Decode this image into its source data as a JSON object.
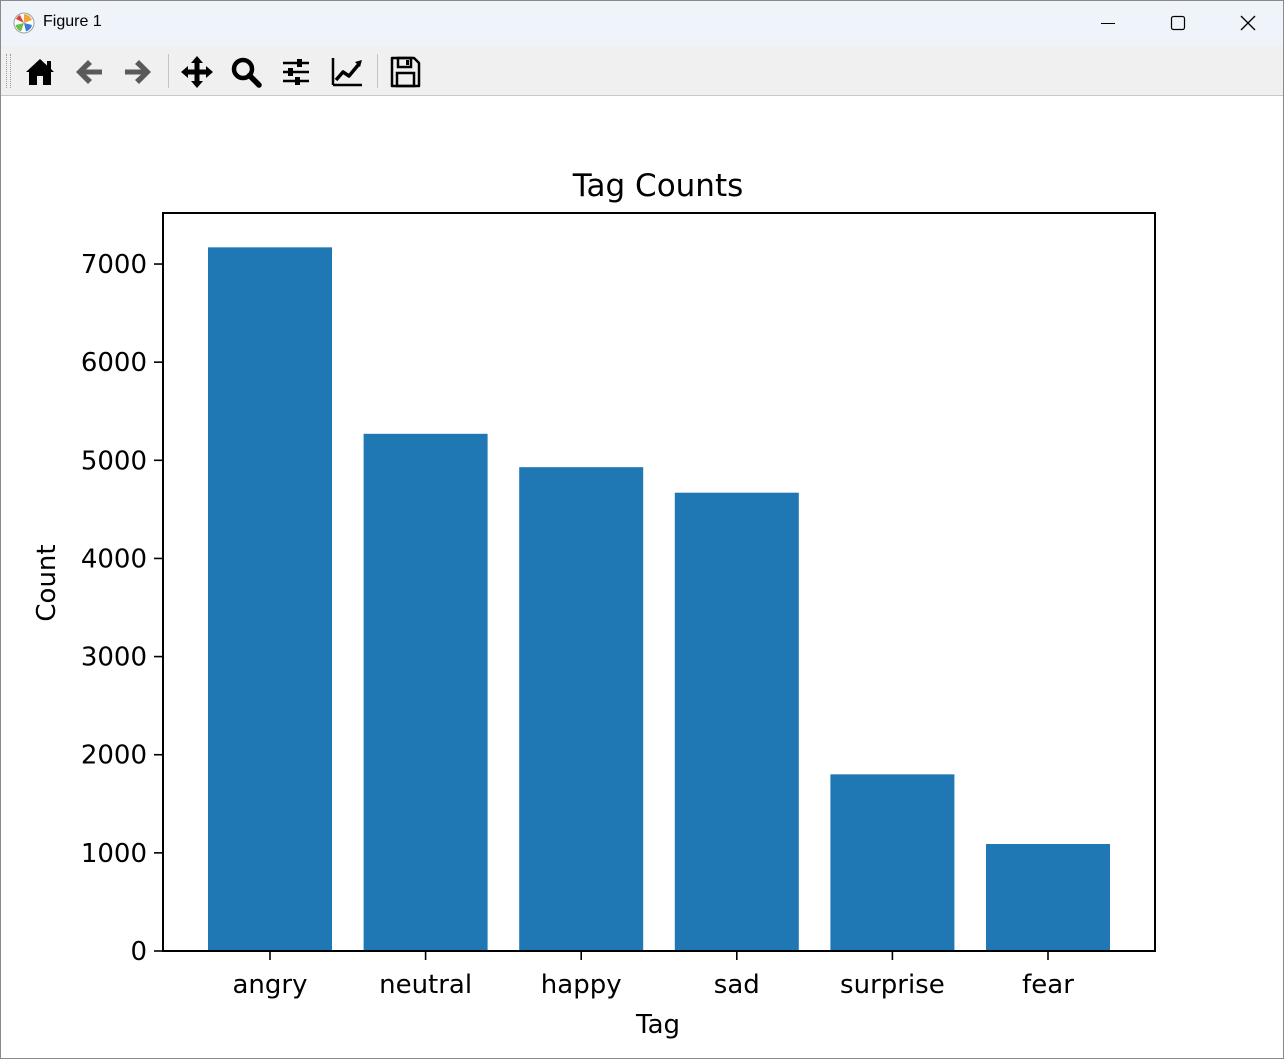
{
  "window": {
    "title": "Figure 1",
    "icon": "matplotlib-icon"
  },
  "window_controls": {
    "minimize": "minimize-icon",
    "maximize": "maximize-icon",
    "close": "close-icon"
  },
  "toolbar": {
    "tools": [
      {
        "name": "home-button",
        "icon": "home-icon"
      },
      {
        "name": "back-button",
        "icon": "arrow-left-icon"
      },
      {
        "name": "forward-button",
        "icon": "arrow-right-icon"
      },
      {
        "name": "pan-button",
        "icon": "move-icon"
      },
      {
        "name": "zoom-button",
        "icon": "magnifier-icon"
      },
      {
        "name": "configure-subplots-button",
        "icon": "sliders-icon"
      },
      {
        "name": "edit-axis-button",
        "icon": "line-chart-icon"
      },
      {
        "name": "save-button",
        "icon": "floppy-disk-icon"
      }
    ]
  },
  "chart_data": {
    "type": "bar",
    "title": "Tag Counts",
    "xlabel": "Tag",
    "ylabel": "Count",
    "categories": [
      "angry",
      "neutral",
      "happy",
      "sad",
      "surprise",
      "fear"
    ],
    "values": [
      7170,
      5270,
      4930,
      4670,
      1800,
      1090
    ],
    "ylim": [
      0,
      7520
    ],
    "yticks": [
      0,
      1000,
      2000,
      3000,
      4000,
      5000,
      6000,
      7000
    ],
    "ytick_labels": [
      "0",
      "1000",
      "2000",
      "3000",
      "4000",
      "5000",
      "6000",
      "7000"
    ],
    "bar_color": "#1f77b4",
    "grid": false,
    "legend": "none"
  }
}
